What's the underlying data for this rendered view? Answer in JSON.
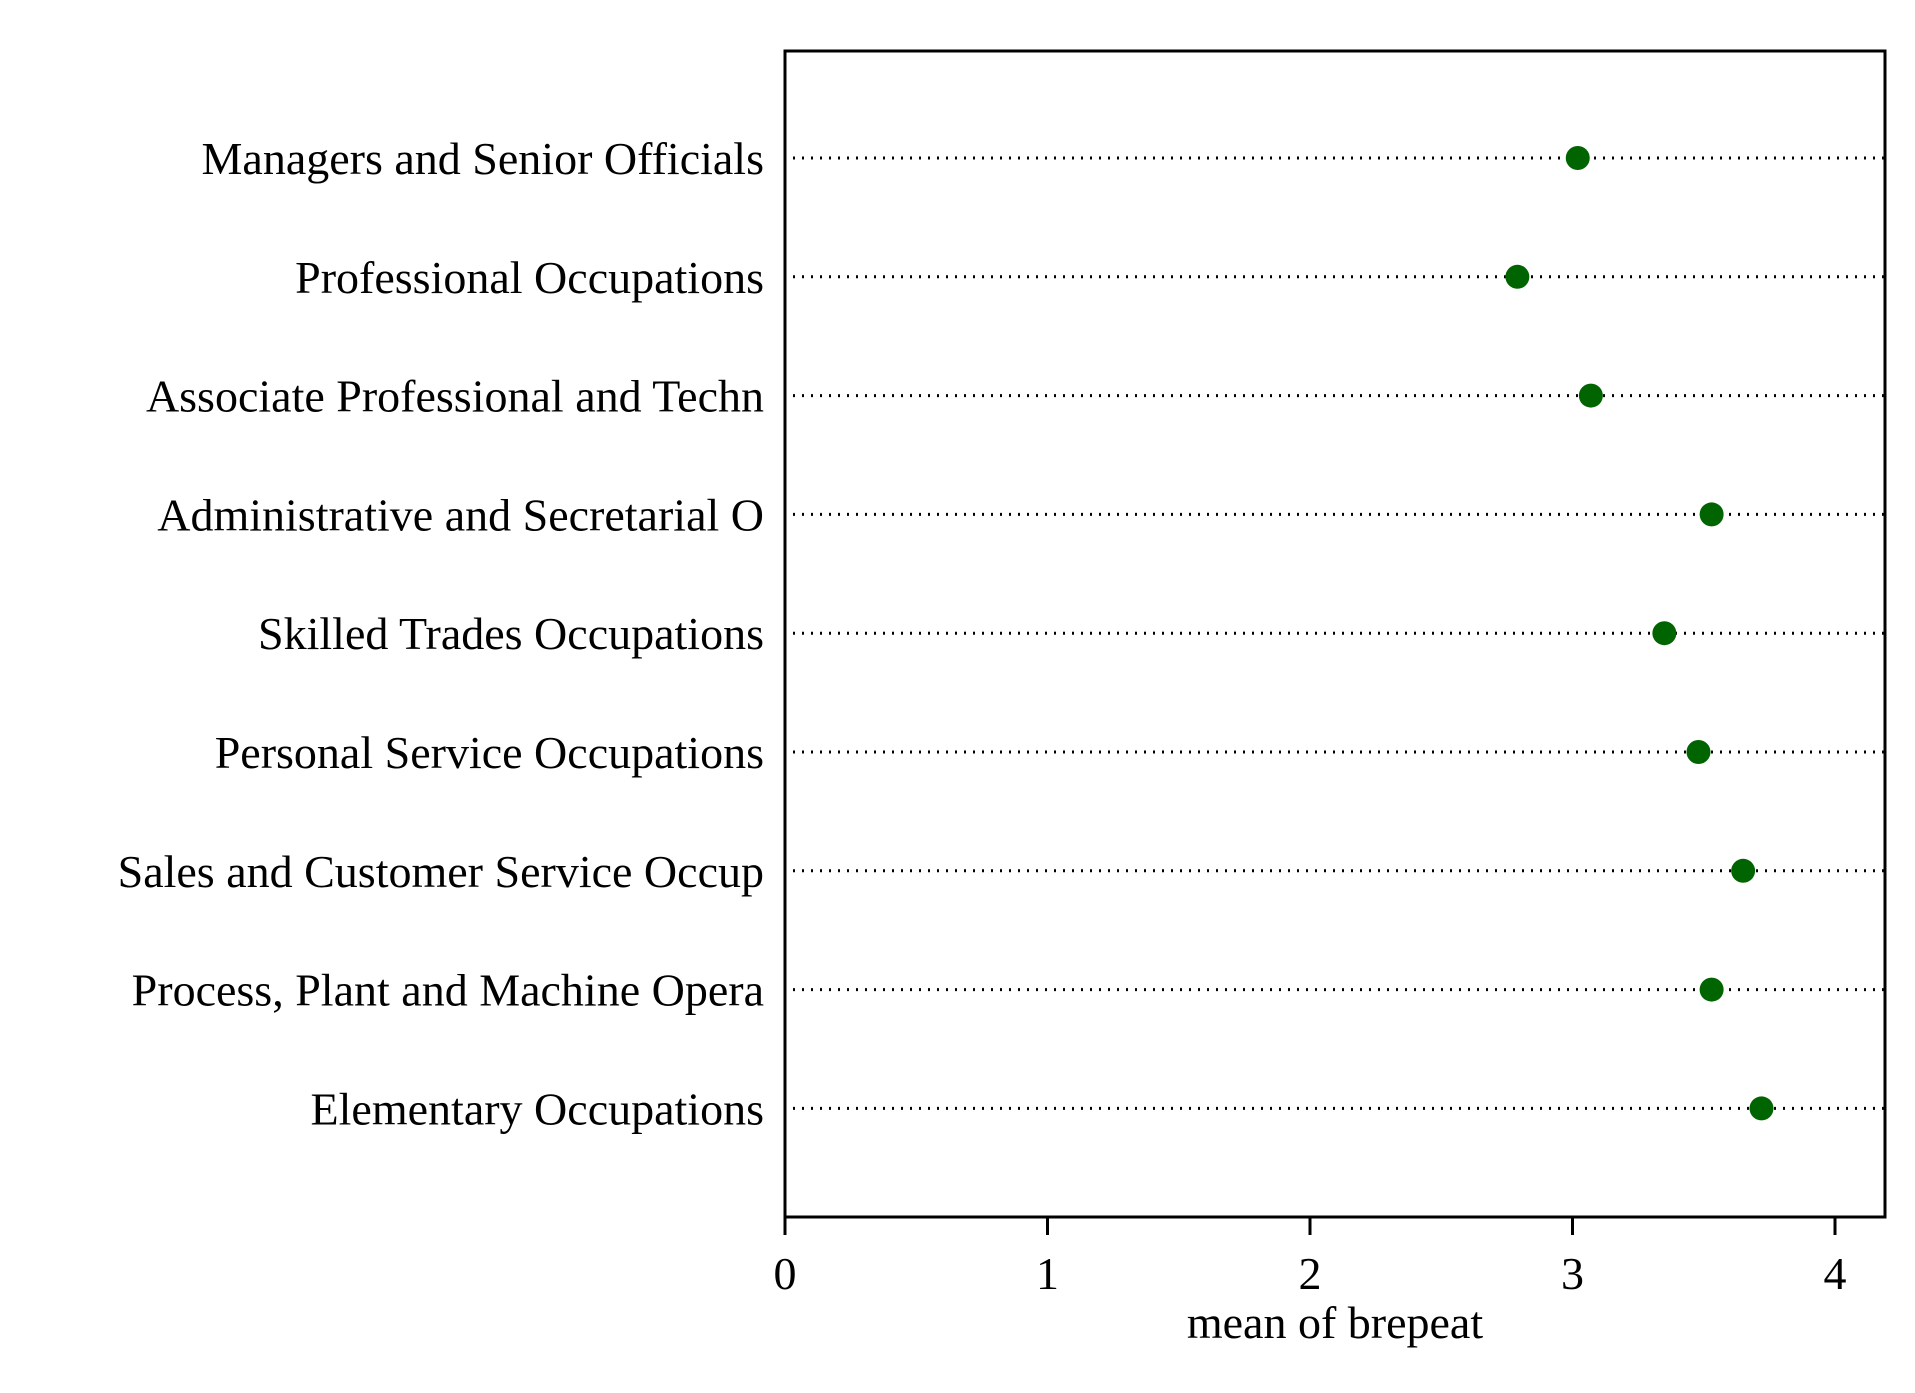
{
  "chart_data": {
    "type": "dot",
    "categories": [
      "Managers and Senior Officials",
      "Professional Occupations",
      "Associate Professional and Techn",
      "Administrative and Secretarial O",
      "Skilled Trades Occupations",
      "Personal Service Occupations",
      "Sales and Customer Service Occup",
      "Process, Plant and Machine Opera",
      "Elementary Occupations"
    ],
    "values": [
      3.02,
      2.79,
      3.07,
      3.53,
      3.35,
      3.48,
      3.65,
      3.53,
      3.72
    ],
    "xlabel": "mean of brepeat",
    "ylabel": "",
    "xlim": [
      0,
      4.2
    ],
    "xticks": [
      "0",
      "1",
      "2",
      "3",
      "4"
    ],
    "grid": "dotted horizontal guide lines",
    "marker_color": "#006400"
  }
}
